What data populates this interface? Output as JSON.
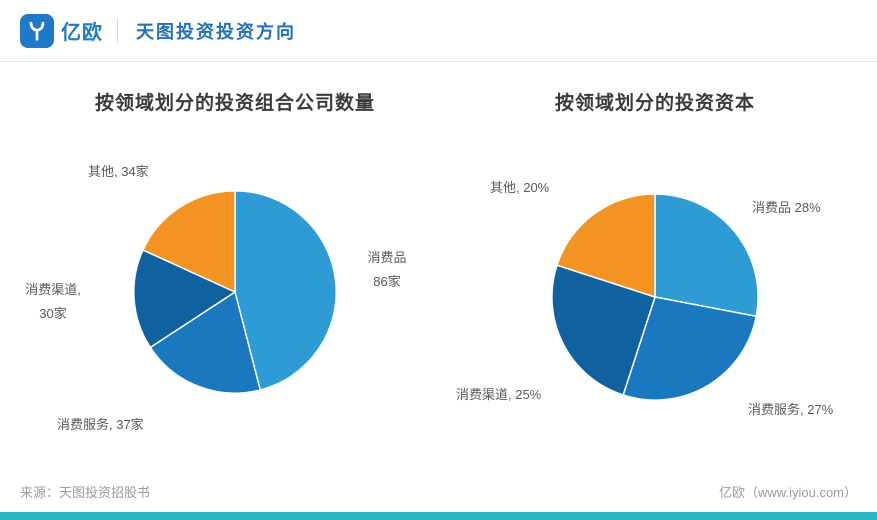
{
  "header": {
    "brand": "亿欧",
    "title": "天图投资投资方向"
  },
  "chart_data": [
    {
      "type": "pie",
      "title": "按领域划分的投资组合公司数量",
      "categories": [
        "消费品",
        "消费服务",
        "消费渠道",
        "其他"
      ],
      "values": [
        86,
        37,
        30,
        34
      ],
      "unit": "家",
      "colors": [
        "#2E9BD5",
        "#1A78BE",
        "#10619F",
        "#F39422"
      ],
      "start_angle_deg": 0,
      "direction": "clockwise",
      "label_lines": [
        [
          "消费品",
          "86家"
        ],
        [
          "消费服务, 37家"
        ],
        [
          "消费渠道,",
          "30家"
        ],
        [
          "其他, 34家"
        ]
      ]
    },
    {
      "type": "pie",
      "title": "按领域划分的投资资本",
      "categories": [
        "消费品",
        "消费服务",
        "消费渠道",
        "其他"
      ],
      "values": [
        28,
        27,
        25,
        20
      ],
      "unit": "%",
      "colors": [
        "#2E9BD5",
        "#1A78BE",
        "#10619F",
        "#F39422"
      ],
      "start_angle_deg": 0,
      "direction": "clockwise",
      "label_lines": [
        [
          "消费品 28%"
        ],
        [
          "消费服务, 27%"
        ],
        [
          "消费渠道, 25%"
        ],
        [
          "其他, 20%"
        ]
      ]
    }
  ],
  "footer": {
    "source": "来源：天图投资招股书",
    "brand": "亿欧（www.iyiou.com）"
  },
  "theme": {
    "accent_blue": "#2272B9",
    "bottom_bar_teal": "#2BB7C6"
  }
}
